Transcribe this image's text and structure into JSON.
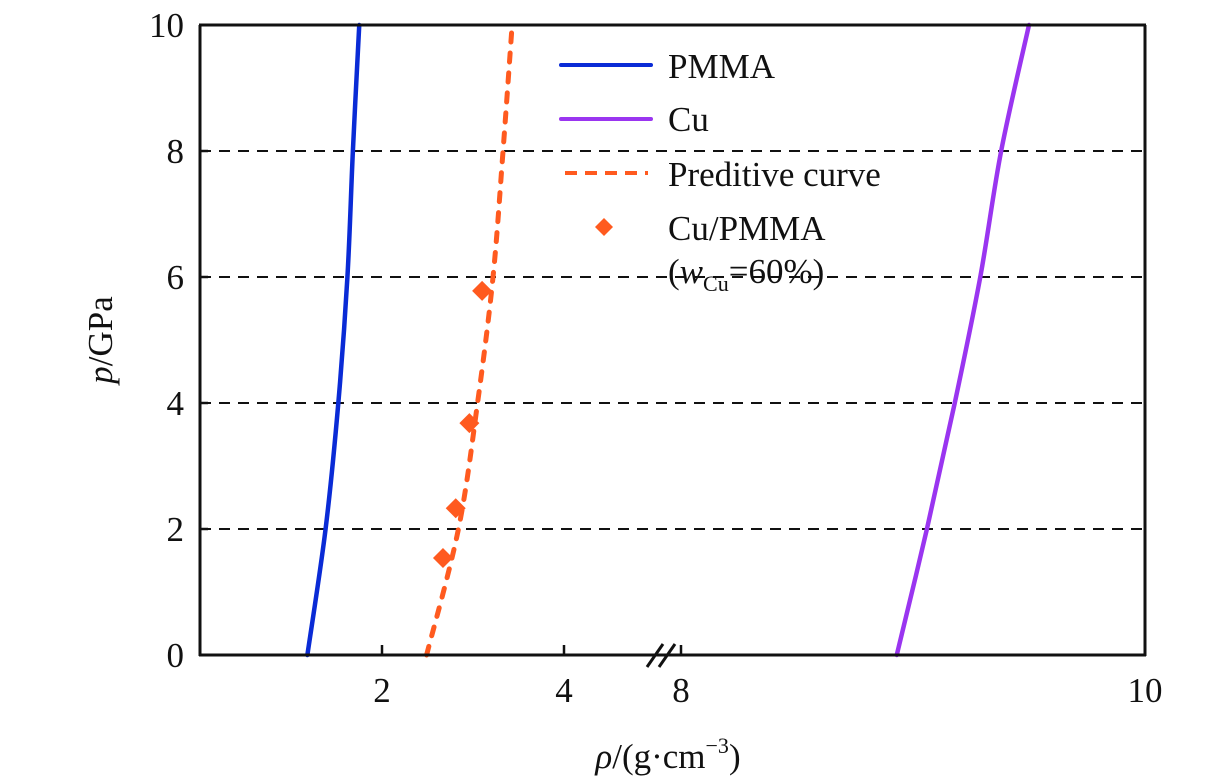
{
  "chart_data": {
    "type": "line",
    "title": "",
    "xlabel": {
      "symbol": "ρ",
      "unit_prefix": "/(g·cm",
      "unit_exp": "−3",
      "unit_suffix": ")"
    },
    "ylabel": {
      "symbol": "p",
      "unit": "/GPa"
    },
    "ylim": [
      0,
      10
    ],
    "yticks": [
      0,
      2,
      4,
      6,
      8,
      10
    ],
    "ytick_labels": [
      "0",
      "2",
      "4",
      "6",
      "8",
      "10"
    ],
    "x_axis_broken": true,
    "x_segments": [
      {
        "range": [
          0,
          5
        ],
        "ticks": [
          2,
          4
        ],
        "tick_labels": [
          "2",
          "4"
        ]
      },
      {
        "range": [
          8,
          10
        ],
        "ticks": [
          8,
          10
        ],
        "tick_labels": [
          "8",
          "10"
        ]
      }
    ],
    "grid": {
      "y": true,
      "x": false,
      "style": "dashed"
    },
    "legend": {
      "placement": "top-center",
      "entries": [
        {
          "label": "PMMA",
          "kind": "line"
        },
        {
          "label": "Cu",
          "kind": "line"
        },
        {
          "label": "Preditive curve",
          "kind": "dashed-line"
        },
        {
          "label": "Cu/PMMA",
          "label_line2_prefix": "(",
          "label_line2_var": "w",
          "label_line2_sub": "Cu",
          "label_line2_suffix": "=60%)",
          "kind": "marker"
        }
      ]
    },
    "series": [
      {
        "name": "PMMA",
        "type": "line",
        "color": "#0a2bd6",
        "points": [
          [
            1.18,
            0
          ],
          [
            1.38,
            2
          ],
          [
            1.52,
            4
          ],
          [
            1.62,
            6
          ],
          [
            1.68,
            8
          ],
          [
            1.75,
            10
          ]
        ]
      },
      {
        "name": "Cu",
        "type": "line",
        "color": "#9a35f0",
        "points": [
          [
            8.93,
            0
          ],
          [
            9.06,
            2
          ],
          [
            9.18,
            4
          ],
          [
            9.29,
            6
          ],
          [
            9.38,
            8
          ],
          [
            9.5,
            10
          ]
        ]
      },
      {
        "name": "Preditive curve",
        "type": "dashed-line",
        "color": "#ff5a1f",
        "points": [
          [
            2.49,
            0
          ],
          [
            2.84,
            2
          ],
          [
            3.05,
            4
          ],
          [
            3.22,
            6
          ],
          [
            3.33,
            8
          ],
          [
            3.43,
            10
          ]
        ]
      },
      {
        "name": "Cu/PMMA (wCu=60%)",
        "type": "scatter",
        "marker": "diamond",
        "color": "#ff5a1f",
        "points": [
          [
            2.67,
            1.54
          ],
          [
            2.81,
            2.33
          ],
          [
            2.96,
            3.68
          ],
          [
            3.1,
            5.78
          ]
        ]
      }
    ]
  }
}
